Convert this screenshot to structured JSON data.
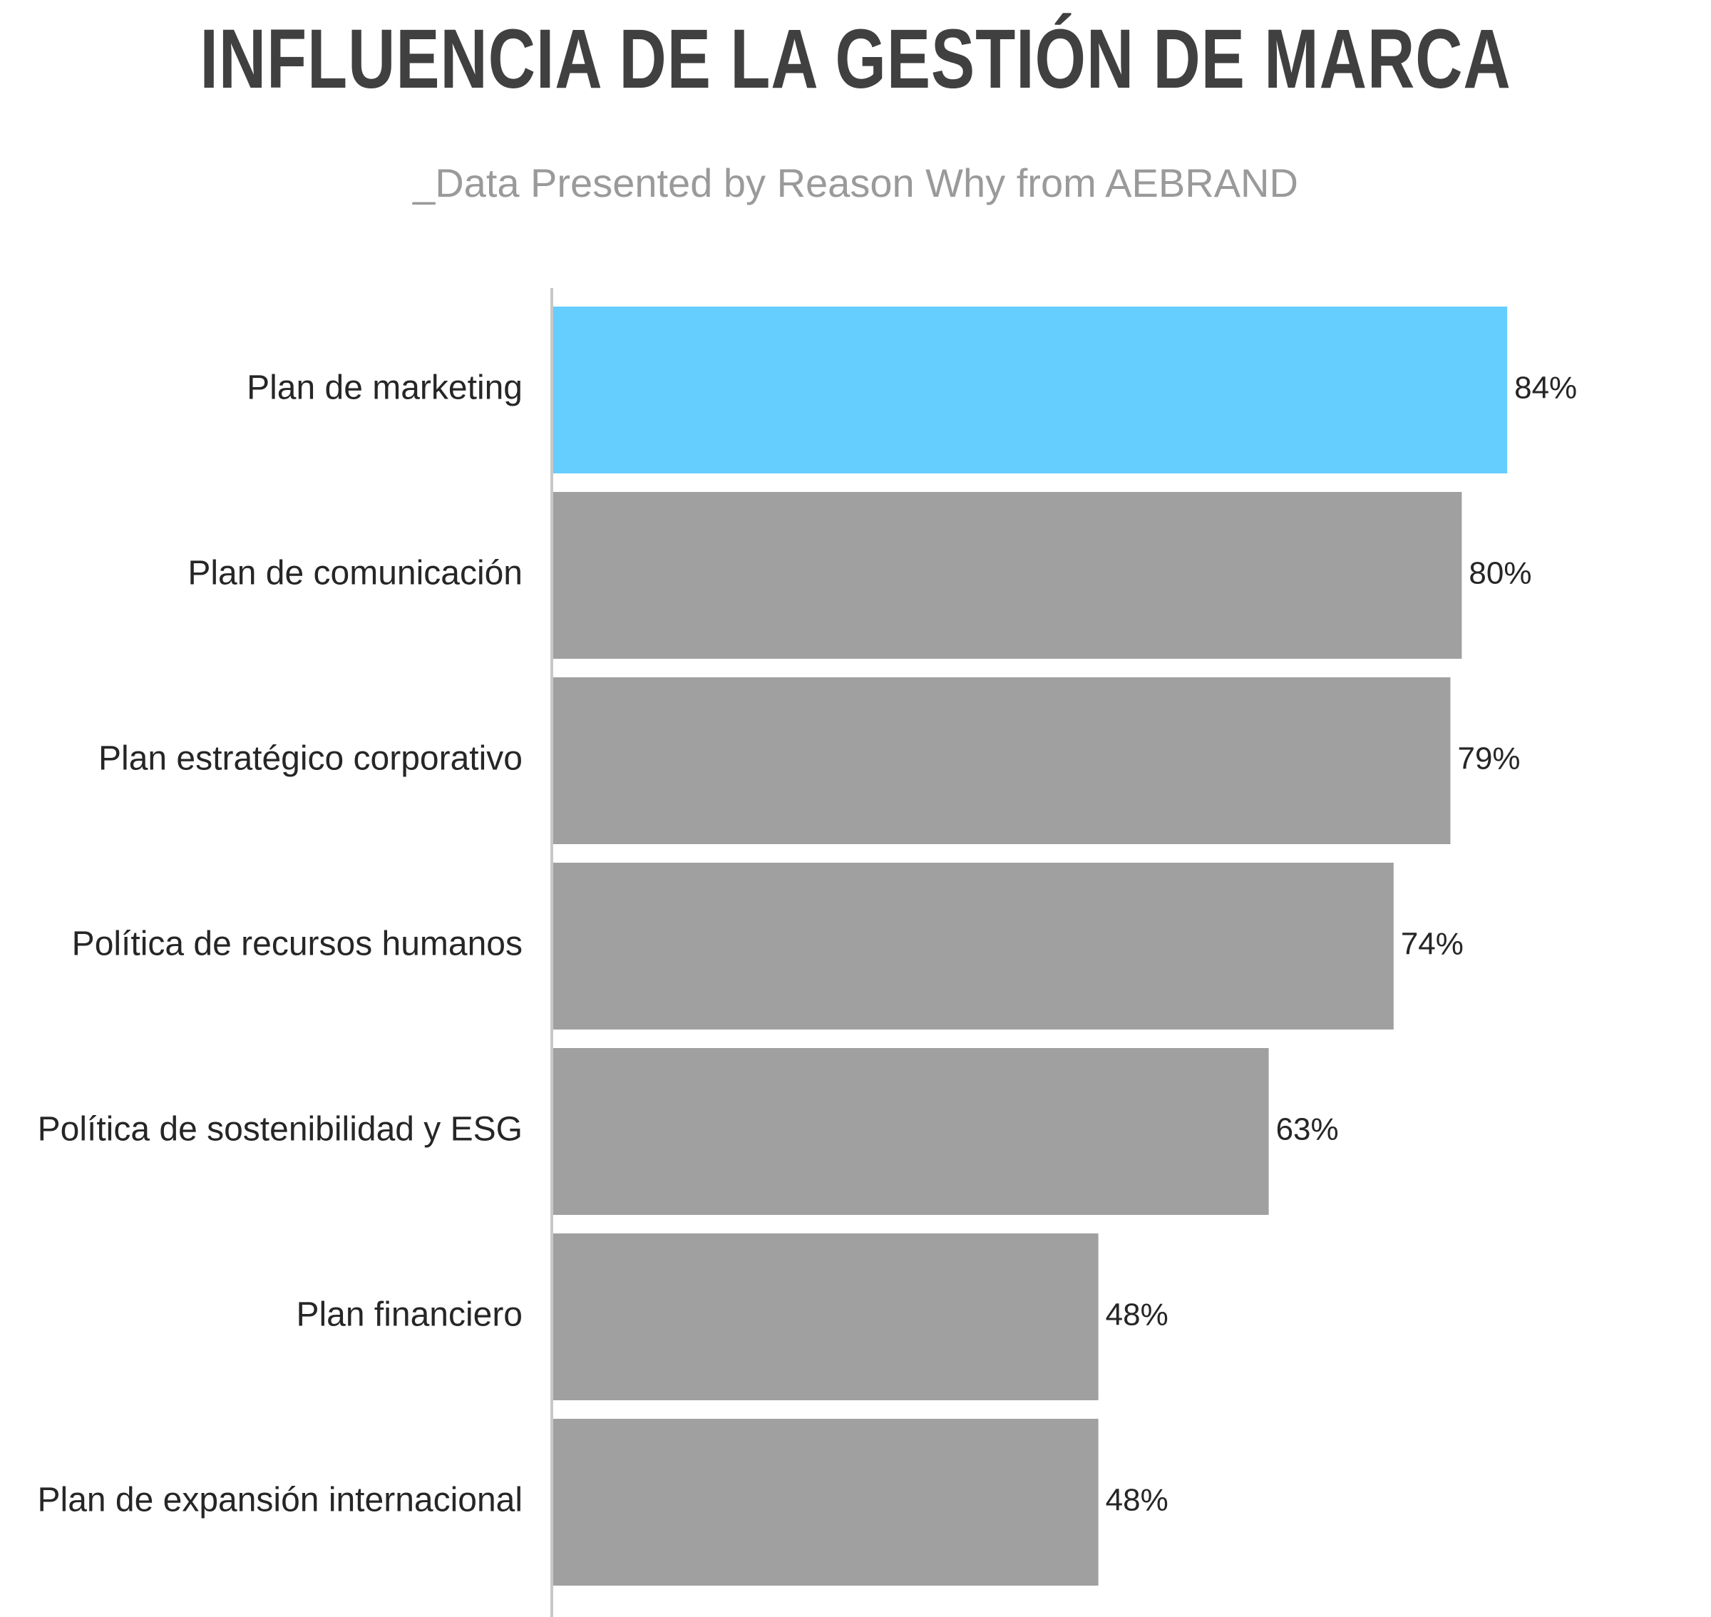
{
  "chart_data": {
    "type": "bar",
    "orientation": "horizontal",
    "title": "INFLUENCIA DE LA GESTIÓN DE MARCA",
    "subtitle": "_Data Presented by Reason Why from AEBRAND",
    "xlabel": "",
    "ylabel": "",
    "xlim": [
      0,
      100
    ],
    "grid": false,
    "legend": "none",
    "categories": [
      "Plan de marketing",
      "Plan de comunicación",
      "Plan estratégico corporativo",
      "Política de recursos humanos",
      "Política de sostenibilidad y ESG",
      "Plan financiero",
      "Plan de expansión internacional"
    ],
    "values": [
      84,
      80,
      79,
      74,
      63,
      48,
      48
    ],
    "value_labels": [
      "84%",
      "80%",
      "79%",
      "74%",
      "63%",
      "48%",
      "48%"
    ],
    "highlight_index": 0,
    "colors": {
      "highlight": "#66cdff",
      "bar": "#a0a0a0",
      "axis": "#c8c8c8",
      "title": "#404040",
      "subtitle": "#9a9a9a",
      "text": "#262626"
    }
  }
}
